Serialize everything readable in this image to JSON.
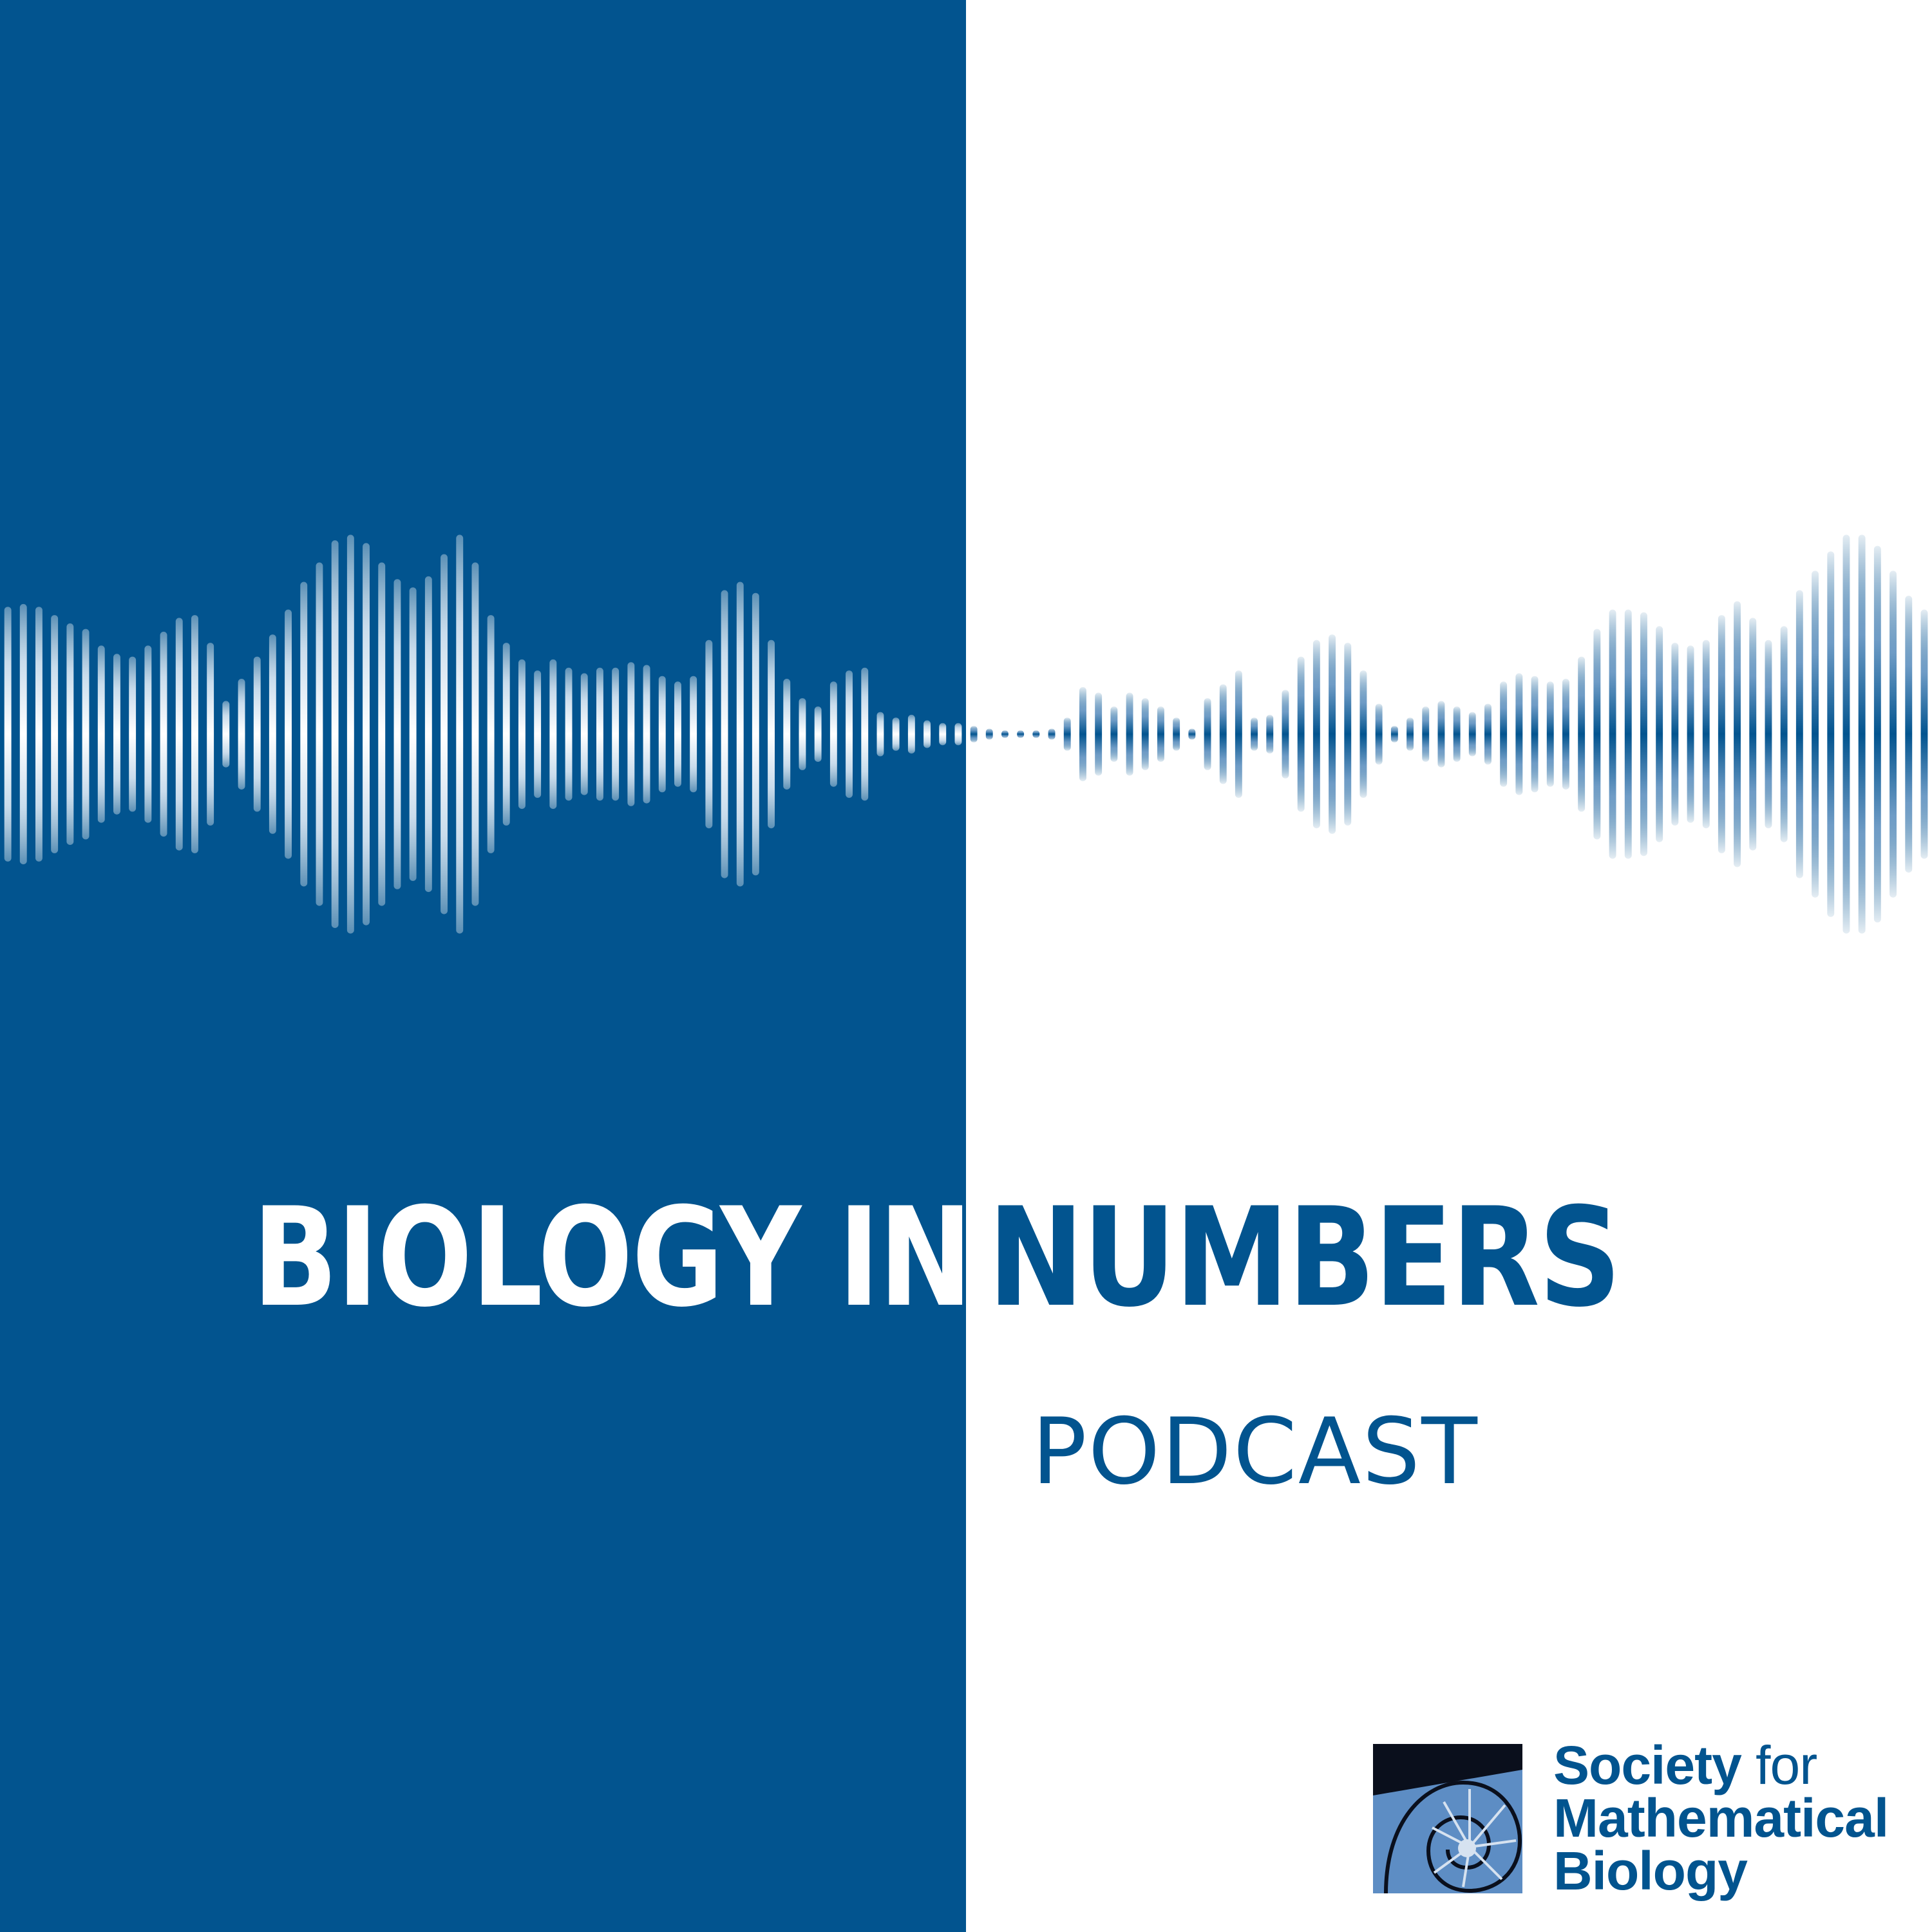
{
  "title": {
    "part1": "BIOLOGY  IN",
    "part2": "NUMBERS"
  },
  "subtitle": "PODCAST",
  "publisher": {
    "line1_bold": "Society",
    "line1_light": " for",
    "line2": "Mathematical",
    "line3": "Biology",
    "emblem": "nautilus-shell-icon"
  },
  "colors": {
    "brand_blue": "#02548f",
    "white": "#ffffff",
    "emblem_light_blue": "#5d8dc4",
    "emblem_black": "#0a0f1c"
  },
  "waveform": {
    "icon": "sound-wave-icon",
    "amplitudes": [
      0.46,
      0.47,
      0.46,
      0.43,
      0.4,
      0.38,
      0.32,
      0.29,
      0.28,
      0.32,
      0.37,
      0.42,
      0.43,
      0.33,
      0.12,
      0.2,
      0.28,
      0.36,
      0.45,
      0.55,
      0.62,
      0.7,
      0.72,
      0.69,
      0.62,
      0.56,
      0.53,
      0.57,
      0.65,
      0.72,
      0.62,
      0.43,
      0.33,
      0.27,
      0.23,
      0.27,
      0.24,
      0.22,
      0.24,
      0.24,
      0.26,
      0.25,
      0.21,
      0.19,
      0.21,
      0.34,
      0.52,
      0.55,
      0.51,
      0.34,
      0.2,
      0.13,
      0.1,
      0.19,
      0.23,
      0.24,
      0.08,
      0.06,
      0.07,
      0.05,
      0.04,
      0.04,
      0.03,
      0.02,
      0.01,
      0.01,
      0.0,
      0.02,
      0.06,
      0.17,
      0.15,
      0.1,
      0.15,
      0.13,
      0.1,
      0.06,
      0.02,
      0.13,
      0.18,
      0.23,
      0.06,
      0.07,
      0.16,
      0.28,
      0.34,
      0.36,
      0.33,
      0.23,
      0.11,
      0.03,
      0.06,
      0.1,
      0.12,
      0.1,
      0.08,
      0.11,
      0.19,
      0.22,
      0.21,
      0.19,
      0.2,
      0.28,
      0.38,
      0.45,
      0.45,
      0.44,
      0.39,
      0.33,
      0.32,
      0.34,
      0.43,
      0.48,
      0.42,
      0.34,
      0.39,
      0.52,
      0.59,
      0.66,
      0.72,
      0.72,
      0.68,
      0.59,
      0.5,
      0.45
    ]
  }
}
